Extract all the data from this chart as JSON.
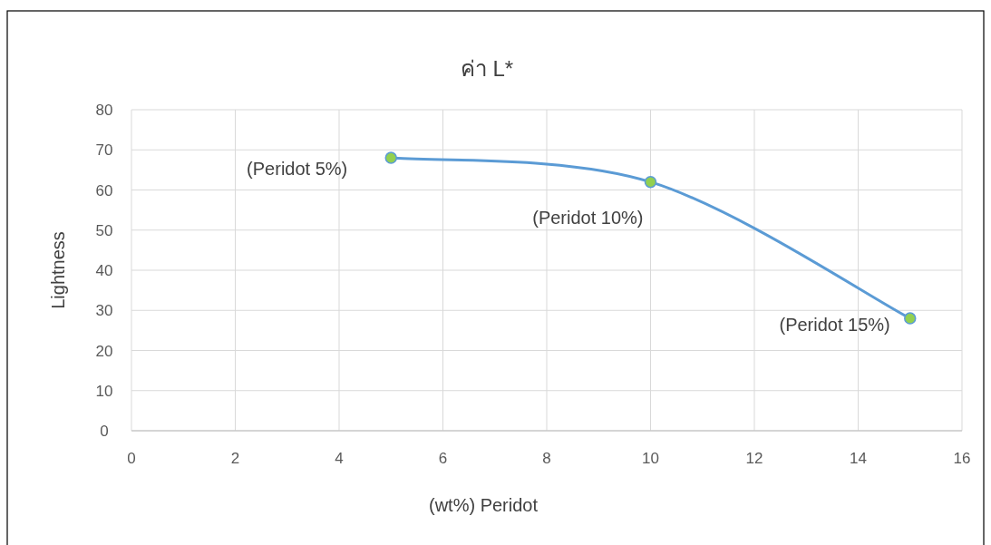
{
  "chart_data": {
    "type": "line",
    "title": "ค่า L*",
    "xlabel": "(wt%) Peridot",
    "ylabel": "Lightness",
    "series": [
      {
        "color": "#5b9bd5",
        "x": [
          5,
          10,
          15
        ],
        "values": [
          68,
          62,
          28
        ]
      }
    ],
    "xlim": [
      0,
      16
    ],
    "xticks": [
      0,
      2,
      4,
      6,
      8,
      10,
      12,
      14,
      16
    ],
    "ylim": [
      0,
      80
    ],
    "yticks": [
      0,
      10,
      20,
      30,
      40,
      50,
      60,
      70,
      80
    ],
    "grid": true,
    "marker": "circle",
    "line_style": "solid",
    "annotations": [
      {
        "text": "(Peridot 5%)",
        "x": 5,
        "y": 68
      },
      {
        "text": "(Peridot 10%)",
        "x": 10,
        "y": 62
      },
      {
        "text": "(Peridot 15%)",
        "x": 15,
        "y": 28
      }
    ]
  }
}
